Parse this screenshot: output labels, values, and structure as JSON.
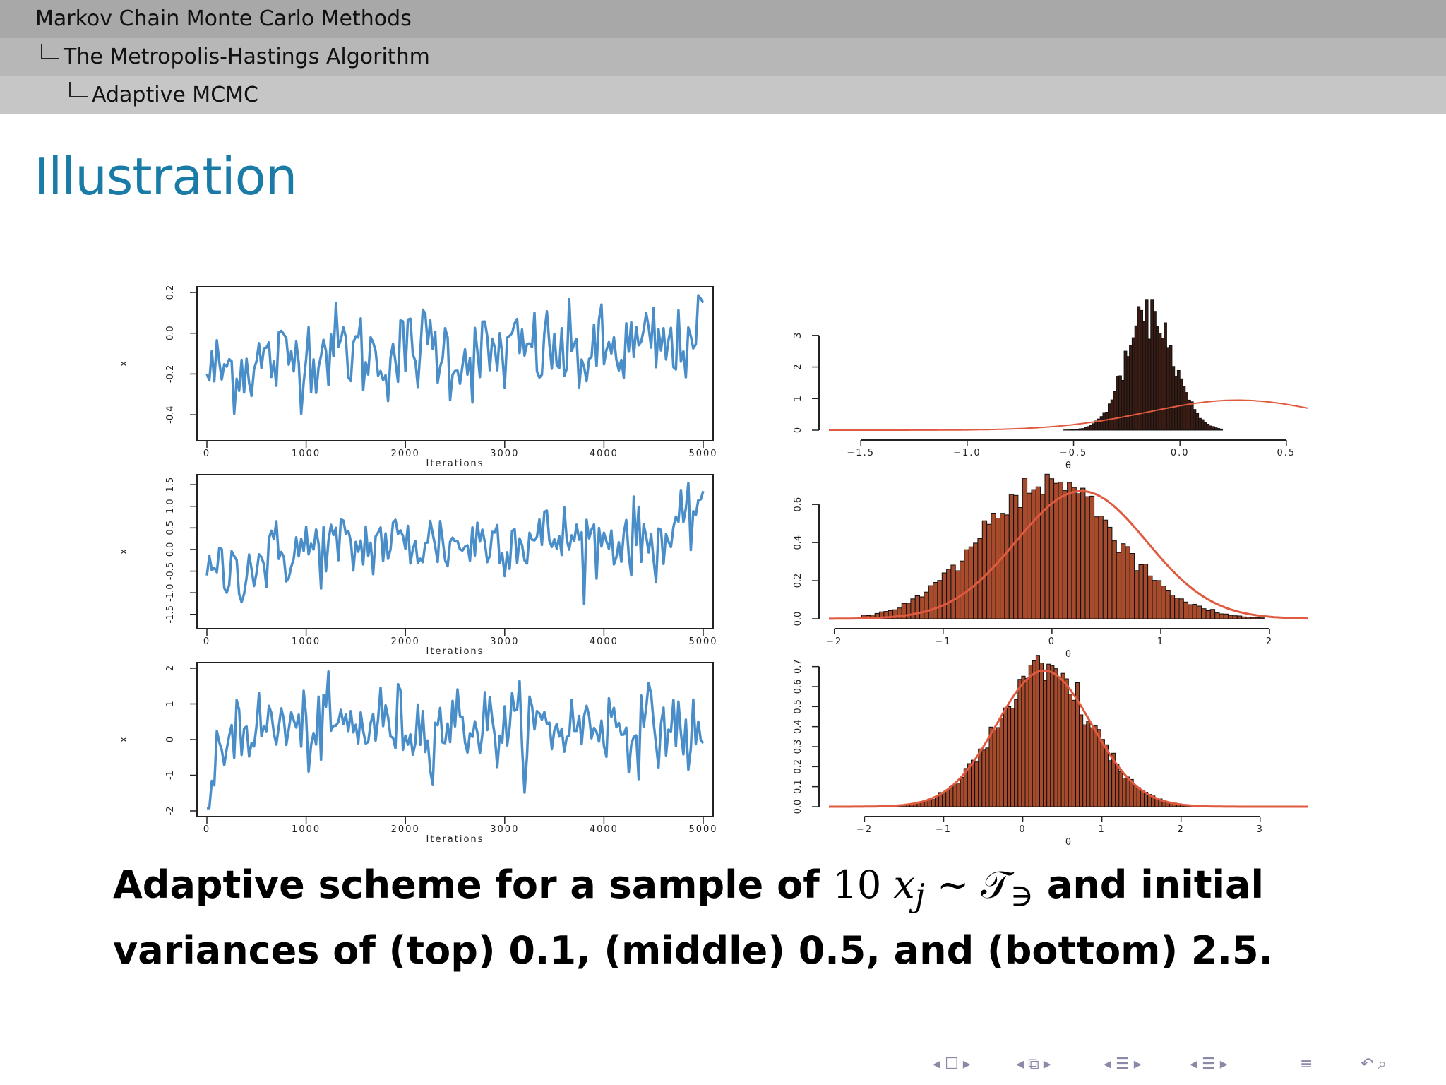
{
  "header": {
    "section": "Markov Chain Monte Carlo Methods",
    "subsection": "The Metropolis-Hastings Algorithm",
    "subsubsection": "Adaptive MCMC"
  },
  "slide": {
    "title": "Illustration"
  },
  "caption": {
    "part1": "Adaptive scheme for a sample of",
    "math_num": "10",
    "math_x": "x",
    "math_j": "j",
    "math_sim": "∼",
    "math_T": "𝒯",
    "math_sub": "∋",
    "part2": "and initial variances of (top) 0.1, (middle) 0.5, and (bottom) 2.5."
  },
  "colors": {
    "header1": "#a8a8a8",
    "header2": "#b7b7b7",
    "header3": "#c6c6c6",
    "title": "#1a7ba6",
    "trace": "#4a8ec9",
    "bar_top": "#3a1c14",
    "bar": "#a84a2c",
    "density": "#e05a40",
    "nav": "#8a8aa8"
  },
  "nav_icons": [
    "frame-prev-icon",
    "frame-icon",
    "frame-next-icon",
    "subsection-prev-icon",
    "subsection-icon",
    "subsection-next-icon",
    "section-prev-icon",
    "section-icon",
    "section-next-icon",
    "subsubsection-prev-icon",
    "subsubsection-icon",
    "subsubsection-next-icon",
    "menu-icon",
    "undo-icon",
    "search-icon"
  ],
  "chart_data": [
    {
      "type": "line",
      "panel": "top-left",
      "xlabel": "Iterations",
      "ylabel": "x",
      "xlim": [
        0,
        5000
      ],
      "ylim": [
        -0.5,
        0.2
      ],
      "xticks": [
        "0",
        "1000",
        "2000",
        "3000",
        "4000",
        "5000"
      ],
      "yticks": [
        "-0.4",
        "-0.2",
        "0.0",
        "0.2"
      ],
      "x": [
        0,
        250,
        500,
        750,
        1000,
        1250,
        1500,
        1750,
        2000,
        2250,
        2500,
        2750,
        3000,
        3250,
        3500,
        3750,
        4000,
        4250,
        4500,
        4750,
        5000
      ],
      "values": [
        -0.2,
        -0.17,
        -0.15,
        -0.13,
        -0.1,
        -0.07,
        -0.09,
        -0.12,
        -0.1,
        -0.05,
        -0.12,
        -0.11,
        -0.1,
        -0.08,
        -0.09,
        -0.12,
        -0.09,
        -0.08,
        -0.06,
        -0.1,
        0.15
      ]
    },
    {
      "type": "line",
      "panel": "middle-left",
      "xlabel": "Iterations",
      "ylabel": "x",
      "xlim": [
        0,
        5000
      ],
      "ylim": [
        -1.7,
        1.6
      ],
      "xticks": [
        "0",
        "1000",
        "2000",
        "3000",
        "4000",
        "5000"
      ],
      "yticks": [
        "-1.5",
        "-1.0",
        "-0.5",
        "0.0",
        "0.5",
        "1.0",
        "1.5"
      ],
      "x": [
        0,
        250,
        500,
        750,
        1000,
        1250,
        1500,
        1750,
        2000,
        2250,
        2500,
        2750,
        3000,
        3250,
        3500,
        3750,
        4000,
        4250,
        4500,
        4750,
        5000
      ],
      "values": [
        -0.6,
        -0.5,
        -0.3,
        -0.1,
        0.0,
        0.1,
        0.0,
        0.2,
        0.1,
        0.2,
        0.1,
        0.2,
        0.3,
        0.2,
        0.3,
        0.2,
        0.2,
        0.3,
        0.2,
        0.3,
        1.35
      ]
    },
    {
      "type": "line",
      "panel": "bottom-left",
      "xlabel": "Iterations",
      "ylabel": "x",
      "xlim": [
        0,
        5000
      ],
      "ylim": [
        -2,
        2
      ],
      "xticks": [
        "0",
        "1000",
        "2000",
        "3000",
        "4000",
        "5000"
      ],
      "yticks": [
        "-2",
        "-1",
        "0",
        "1",
        "2"
      ],
      "x": [
        0,
        250,
        500,
        750,
        1000,
        1250,
        1500,
        1750,
        2000,
        2250,
        2500,
        2750,
        3000,
        3250,
        3500,
        3750,
        4000,
        4250,
        4500,
        4750,
        5000
      ],
      "values": [
        -2.0,
        0.5,
        0.3,
        0.4,
        0.2,
        0.4,
        0.3,
        0.5,
        0.4,
        0.3,
        0.5,
        0.4,
        0.3,
        0.4,
        0.3,
        0.4,
        0.5,
        0.3,
        0.4,
        0.3,
        -0.1
      ]
    },
    {
      "type": "bar",
      "panel": "top-right",
      "xlabel": "θ",
      "xlim": [
        -1.65,
        0.6
      ],
      "ylim": [
        0,
        3.6
      ],
      "xticks": [
        "−1.5",
        "−1.0",
        "−0.5",
        "0.0",
        "0.5"
      ],
      "yticks": [
        "0",
        "1",
        "2",
        "3"
      ],
      "hist": {
        "mean": -0.14,
        "sd": 0.11,
        "peak": 3.75,
        "from": -0.55,
        "to": 0.2
      },
      "density": {
        "mean": 0.27,
        "sd": 0.42,
        "peak": 0.95
      }
    },
    {
      "type": "bar",
      "panel": "middle-right",
      "xlabel": "θ",
      "xlim": [
        -2.05,
        2.35
      ],
      "ylim": [
        0,
        0.66
      ],
      "xticks": [
        "−2",
        "−1",
        "0",
        "1",
        "2"
      ],
      "yticks": [
        "0.0",
        "0.2",
        "0.4",
        "0.6"
      ],
      "hist": {
        "mean": -0.03,
        "sd": 0.62,
        "peak": 0.73,
        "from": -1.75,
        "to": 1.95
      },
      "density": {
        "mean": 0.27,
        "sd": 0.6,
        "peak": 0.67
      }
    },
    {
      "type": "bar",
      "panel": "bottom-right",
      "xlabel": "θ",
      "xlim": [
        -2.45,
        3.6
      ],
      "ylim": [
        0,
        0.72
      ],
      "xticks": [
        "−2",
        "−1",
        "0",
        "1",
        "2",
        "3"
      ],
      "yticks": [
        "0.0",
        "0.1",
        "0.2",
        "0.3",
        "0.4",
        "0.5",
        "0.6",
        "0.7"
      ],
      "hist": {
        "mean": 0.28,
        "sd": 0.6,
        "peak": 0.67,
        "from": -1.7,
        "to": 2.4
      },
      "density": {
        "mean": 0.27,
        "sd": 0.6,
        "peak": 0.68
      }
    }
  ]
}
